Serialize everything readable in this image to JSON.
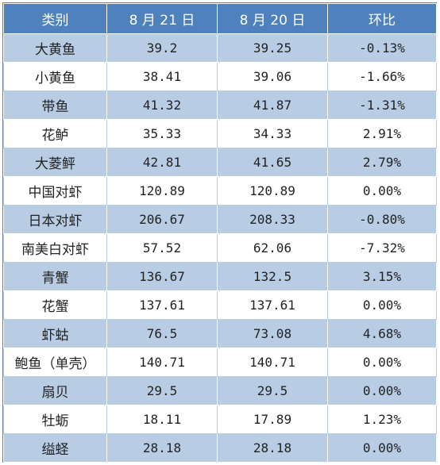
{
  "table": {
    "headers": [
      "类别",
      "8 月 21 日",
      "8 月 20 日",
      "环比"
    ],
    "rows": [
      {
        "category": "大黄鱼",
        "aug21": "39.2",
        "aug20": "39.25",
        "change": "-0.13%"
      },
      {
        "category": "小黄鱼",
        "aug21": "38.41",
        "aug20": "39.06",
        "change": "-1.66%"
      },
      {
        "category": "带鱼",
        "aug21": "41.32",
        "aug20": "41.87",
        "change": "-1.31%"
      },
      {
        "category": "花鲈",
        "aug21": "35.33",
        "aug20": "34.33",
        "change": "2.91%"
      },
      {
        "category": "大菱鲆",
        "aug21": "42.81",
        "aug20": "41.65",
        "change": "2.79%"
      },
      {
        "category": "中国对虾",
        "aug21": "120.89",
        "aug20": "120.89",
        "change": "0.00%"
      },
      {
        "category": "日本对虾",
        "aug21": "206.67",
        "aug20": "208.33",
        "change": "-0.80%"
      },
      {
        "category": "南美白对虾",
        "aug21": "57.52",
        "aug20": "62.06",
        "change": "-7.32%"
      },
      {
        "category": "青蟹",
        "aug21": "136.67",
        "aug20": "132.5",
        "change": "3.15%"
      },
      {
        "category": "花蟹",
        "aug21": "137.61",
        "aug20": "137.61",
        "change": "0.00%"
      },
      {
        "category": "虾蛄",
        "aug21": "76.5",
        "aug20": "73.08",
        "change": "4.68%"
      },
      {
        "category": "鲍鱼（单壳）",
        "aug21": "140.71",
        "aug20": "140.71",
        "change": "0.00%"
      },
      {
        "category": "扇贝",
        "aug21": "29.5",
        "aug20": "29.5",
        "change": "0.00%"
      },
      {
        "category": "牡蛎",
        "aug21": "18.11",
        "aug20": "17.89",
        "change": "1.23%"
      },
      {
        "category": "缢蛏",
        "aug21": "28.18",
        "aug20": "28.18",
        "change": "0.00%"
      }
    ]
  },
  "colors": {
    "header": "#4f81bd",
    "band": "#b8cce4",
    "plain": "#ffffff"
  }
}
